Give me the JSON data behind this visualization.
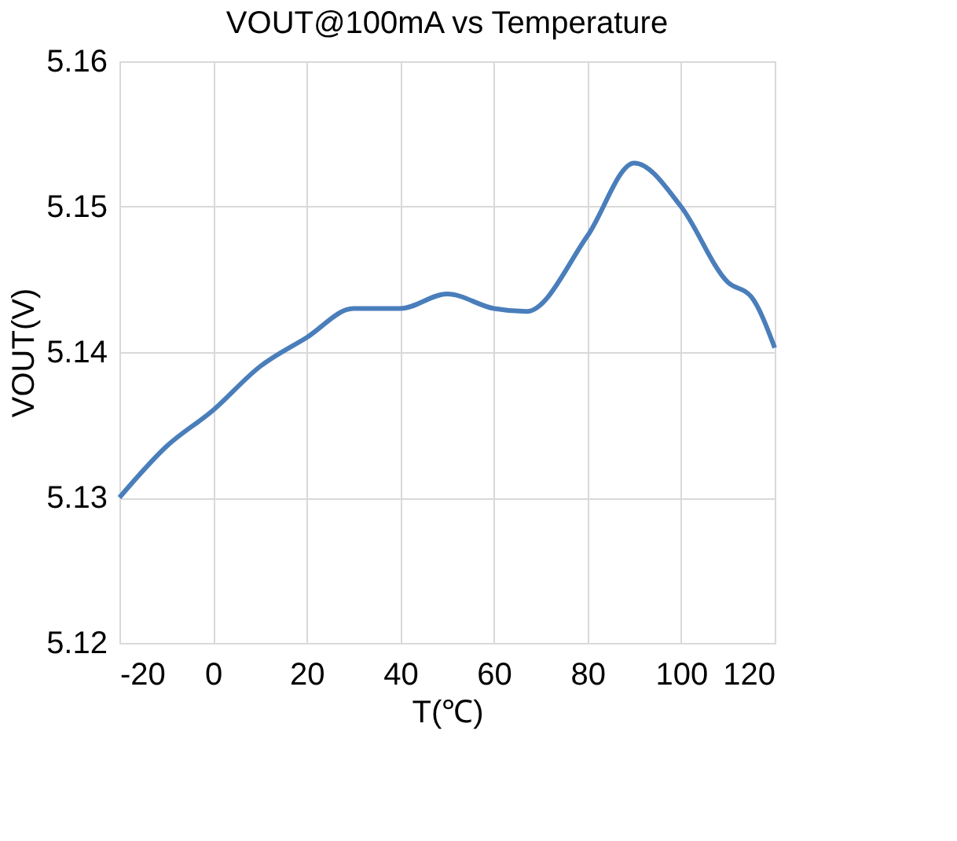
{
  "chart_data": {
    "type": "line",
    "title": "VOUT@100mA vs  Temperature",
    "xlabel": "T(℃)",
    "ylabel": "VOUT(V)",
    "x": [
      -20,
      -10,
      0,
      10,
      20,
      30,
      40,
      50,
      60,
      67,
      80,
      90,
      100,
      110,
      115,
      120
    ],
    "series": [
      {
        "color": "#4a7ebb",
        "values": [
          5.13,
          5.1335,
          5.136,
          5.139,
          5.141,
          5.143,
          5.143,
          5.144,
          5.143,
          5.1428,
          5.148,
          5.153,
          5.15,
          5.1448,
          5.1438,
          5.1403
        ]
      }
    ],
    "xlim": [
      -20,
      120
    ],
    "xticks": [
      -20,
      0,
      20,
      40,
      60,
      80,
      100,
      120
    ],
    "ylim": [
      5.12,
      5.16
    ],
    "yticks": [
      5.12,
      5.13,
      5.14,
      5.15,
      5.16
    ],
    "grid": true,
    "marker": "none",
    "line_style": "solid"
  }
}
